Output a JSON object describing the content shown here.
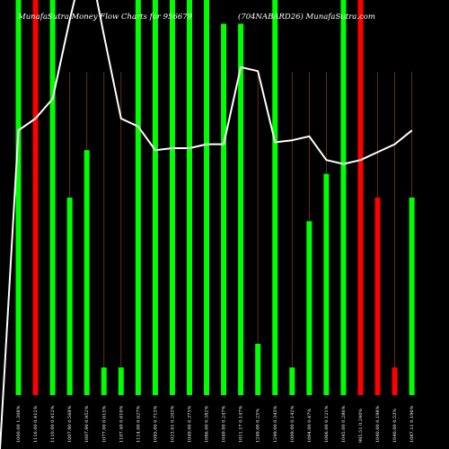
{
  "header": {
    "left": "MunafaSutra Money Flow Charts for 956679",
    "right": "(704NABARD26) MunafaSutra.com"
  },
  "colors": {
    "background": "#000000",
    "inflow": "#00ff00",
    "outflow": "#ff0000",
    "line": "#ffffff",
    "guide": "#7a3a10"
  },
  "chart_data": {
    "type": "bar",
    "ylim": [
      0,
      100
    ],
    "grid": false,
    "categories": [
      "1000.00 1.308%",
      "1116.00 0.412%",
      "1110.00 0.412%",
      "1007.90 0.568%",
      "1007.90 0.952%",
      "1077.00 0.615%",
      "1107.40 0.619%",
      "1114.00 0.627%",
      "1095.00 0.713%",
      "1023.01 0.203%",
      "1049.00 0.373%",
      "1086.00 0.382%",
      "1049.00 0.247%",
      "1011.17 0.147%",
      "1249.00 0.25%",
      "1249.00 0.343%",
      "1009.00 0.142%",
      "1094.00 0.47%",
      "1066.00 0.121%",
      "1045.00 0.286%",
      "995.51 0.240%",
      "1040.00 0.198%",
      "1040.00 0.53%",
      "1087.11 0.196%"
    ],
    "bars": [
      {
        "value": 100,
        "direction": "in"
      },
      {
        "value": 100,
        "direction": "out"
      },
      {
        "value": 100,
        "direction": "in"
      },
      {
        "value": 50,
        "direction": "in"
      },
      {
        "value": 62,
        "direction": "in"
      },
      {
        "value": 7,
        "direction": "in"
      },
      {
        "value": 7,
        "direction": "in"
      },
      {
        "value": 100,
        "direction": "in"
      },
      {
        "value": 100,
        "direction": "in"
      },
      {
        "value": 100,
        "direction": "in"
      },
      {
        "value": 100,
        "direction": "in"
      },
      {
        "value": 100,
        "direction": "in"
      },
      {
        "value": 94,
        "direction": "in"
      },
      {
        "value": 94,
        "direction": "in"
      },
      {
        "value": 13,
        "direction": "in"
      },
      {
        "value": 100,
        "direction": "in"
      },
      {
        "value": 7,
        "direction": "in"
      },
      {
        "value": 44,
        "direction": "in"
      },
      {
        "value": 56,
        "direction": "in"
      },
      {
        "value": 100,
        "direction": "in"
      },
      {
        "value": 100,
        "direction": "out"
      },
      {
        "value": 50,
        "direction": "out"
      },
      {
        "value": 7,
        "direction": "out"
      },
      {
        "value": 50,
        "direction": "in"
      }
    ],
    "line": [
      67,
      70,
      75,
      95,
      113,
      91,
      70,
      68,
      62,
      62.5,
      62.5,
      63.5,
      63.5,
      83,
      82,
      64,
      64.5,
      65.5,
      59.5,
      58.5,
      59.5,
      61.5,
      63.5,
      67
    ]
  }
}
